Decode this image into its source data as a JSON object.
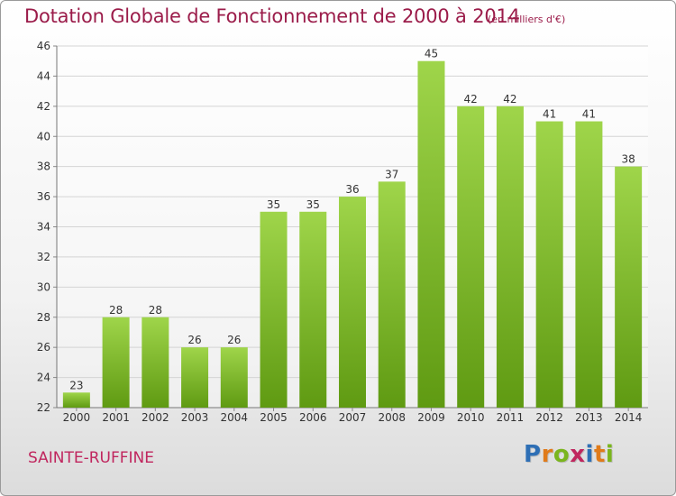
{
  "title": "Dotation Globale de Fonctionnement de 2000 à 2014",
  "unit": "(en milliers d'€)",
  "city": "SAINTE-RUFFINE",
  "brand": {
    "text": "Proxiti",
    "letters": [
      {
        "ch": "P",
        "color": "#2e6fb5"
      },
      {
        "ch": "r",
        "color": "#e07b1a"
      },
      {
        "ch": "o",
        "color": "#7ab51d"
      },
      {
        "ch": "x",
        "color": "#c0265e"
      },
      {
        "ch": "i",
        "color": "#2e6fb5"
      },
      {
        "ch": "t",
        "color": "#e07b1a"
      },
      {
        "ch": "i",
        "color": "#7ab51d"
      }
    ]
  },
  "colors": {
    "title": "#9b1c4a",
    "bar_light": "#9fd54a",
    "bar_dark": "#5f9a12",
    "grid": "#d4d4d4",
    "axis_text": "#333333"
  },
  "chart_data": {
    "type": "bar",
    "categories": [
      "2000",
      "2001",
      "2002",
      "2003",
      "2004",
      "2005",
      "2006",
      "2007",
      "2008",
      "2009",
      "2010",
      "2011",
      "2012",
      "2013",
      "2014"
    ],
    "values": [
      23,
      28,
      28,
      26,
      26,
      35,
      35,
      36,
      37,
      45,
      42,
      42,
      41,
      41,
      38
    ],
    "ylim": [
      22,
      46
    ],
    "yticks": [
      22,
      24,
      26,
      28,
      30,
      32,
      34,
      36,
      38,
      40,
      42,
      44,
      46
    ],
    "grid": true,
    "data_labels": true
  }
}
